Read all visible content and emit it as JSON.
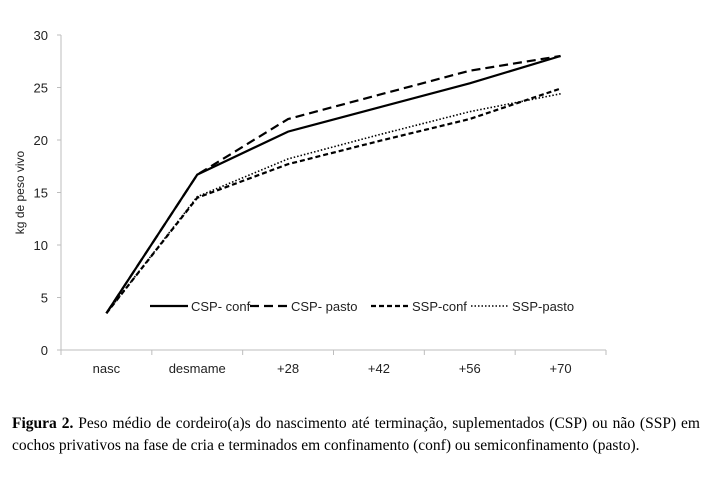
{
  "chart_data": {
    "type": "line",
    "title": "",
    "xlabel": "",
    "ylabel": "kg de peso vivo",
    "ylim": [
      0,
      30
    ],
    "yticks": [
      0,
      5,
      10,
      15,
      20,
      25,
      30
    ],
    "categories": [
      "nasc",
      "desmame",
      "+28",
      "+42",
      "+56",
      "+70"
    ],
    "legend_position": "bottom-inside",
    "grid": false,
    "series": [
      {
        "name": "CSP- conf",
        "style": "solid",
        "values": [
          3.5,
          16.7,
          20.8,
          23.1,
          25.4,
          28.0
        ]
      },
      {
        "name": "CSP- pasto",
        "style": "longdash",
        "values": [
          3.5,
          16.7,
          22.0,
          24.3,
          26.6,
          28.0
        ]
      },
      {
        "name": "SSP-conf",
        "style": "shortdash",
        "values": [
          3.5,
          14.5,
          17.7,
          19.9,
          22.0,
          24.9
        ]
      },
      {
        "name": "SSP-pasto",
        "style": "dotted",
        "values": [
          3.5,
          14.6,
          18.2,
          20.5,
          22.7,
          24.4
        ]
      }
    ]
  },
  "caption": {
    "label": "Figura 2.",
    "text": " Peso médio de cordeiro(a)s do nascimento até terminação, suplementados (CSP) ou não (SSP) em cochos privativos na fase de cria e terminados em confinamento (conf) ou semiconfinamento (pasto)."
  }
}
